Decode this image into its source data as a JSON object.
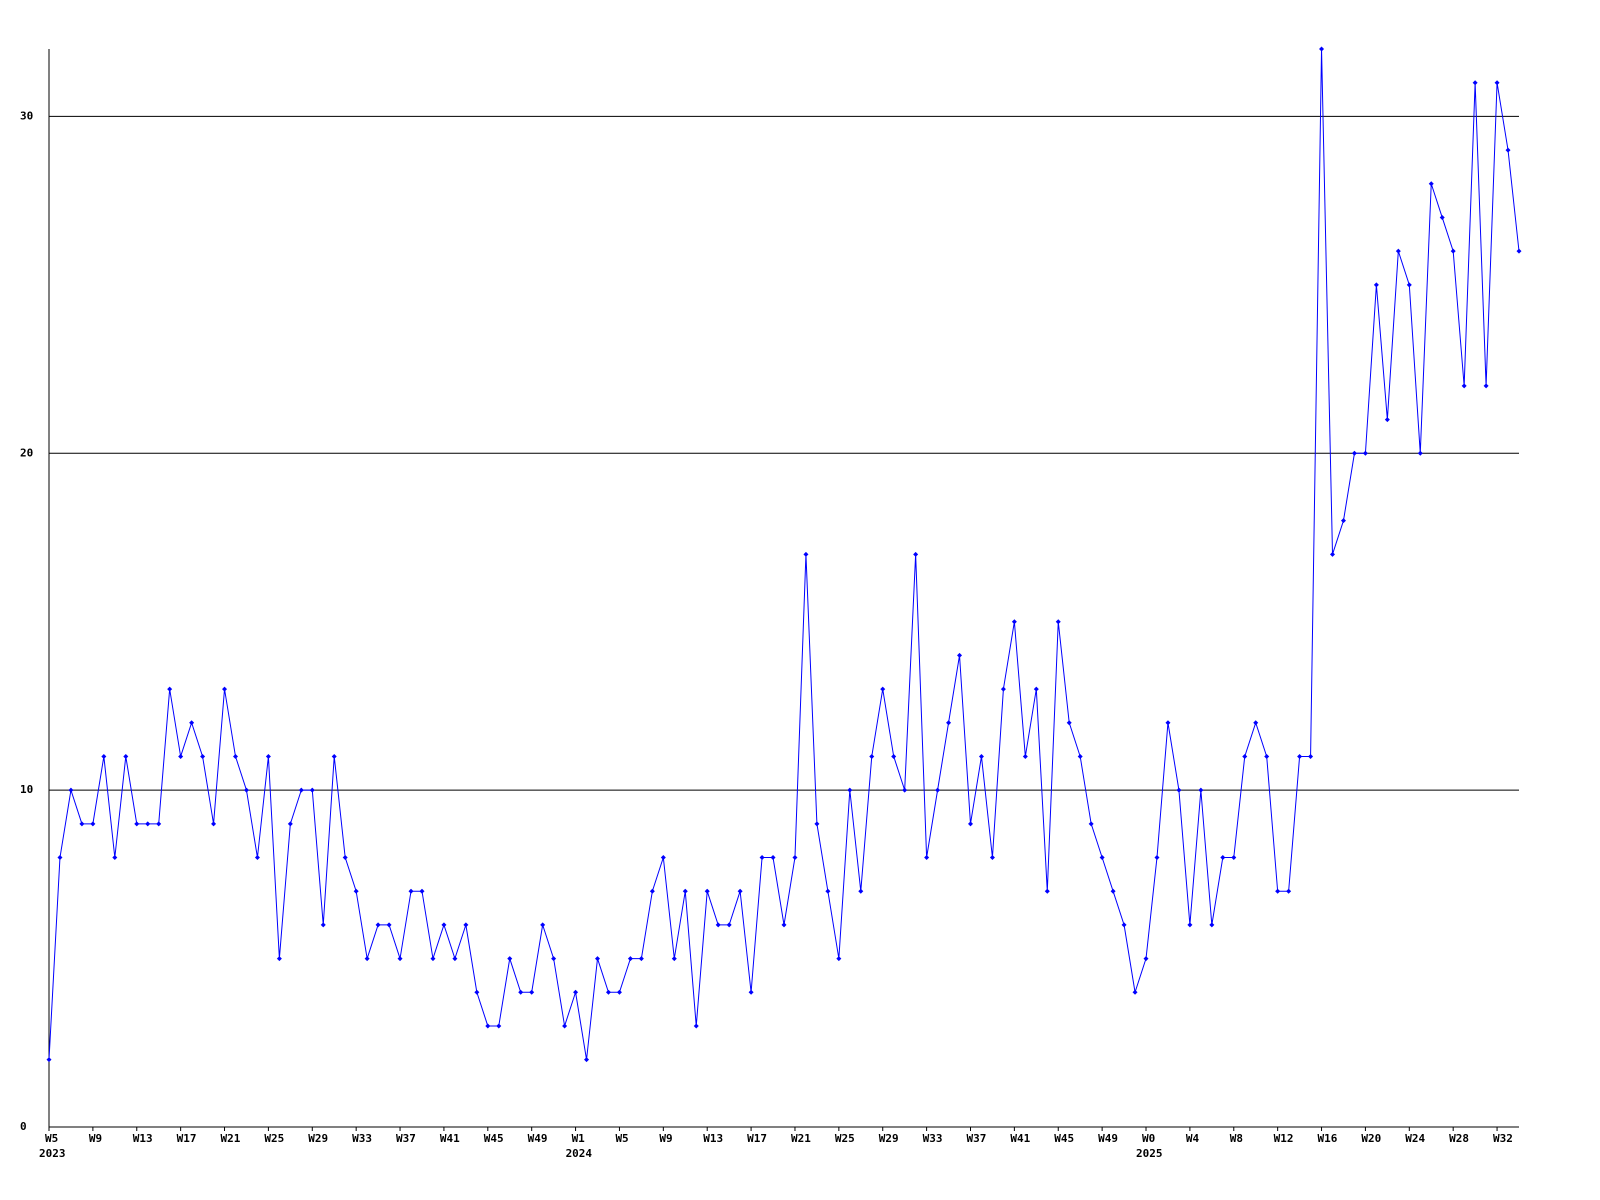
{
  "chart_data": {
    "type": "line",
    "categories": [
      "W5",
      null,
      null,
      null,
      "W9",
      null,
      null,
      null,
      "W13",
      null,
      null,
      null,
      "W17",
      null,
      null,
      null,
      "W21",
      null,
      null,
      null,
      "W25",
      null,
      null,
      null,
      "W29",
      null,
      null,
      null,
      "W33",
      null,
      null,
      null,
      "W37",
      null,
      null,
      null,
      "W41",
      null,
      null,
      null,
      "W45",
      null,
      null,
      null,
      "W49",
      null,
      null,
      null,
      "W1",
      null,
      null,
      null,
      "W5",
      null,
      null,
      null,
      "W9",
      null,
      null,
      null,
      "W13",
      null,
      null,
      null,
      "W17",
      null,
      null,
      null,
      "W21",
      null,
      null,
      null,
      "W25",
      null,
      null,
      null,
      "W29",
      null,
      null,
      null,
      "W33",
      null,
      null,
      null,
      "W37",
      null,
      null,
      null,
      "W41",
      null,
      null,
      null,
      "W45",
      null,
      null,
      null,
      "W49",
      null,
      null,
      null,
      "W0",
      null,
      null,
      null,
      "W4",
      null,
      null,
      null,
      "W8",
      null,
      null,
      null,
      "W12",
      null,
      null,
      null,
      "W16",
      null,
      null,
      null,
      "W20",
      null,
      null,
      null,
      "W24",
      null,
      null,
      null,
      "W28",
      null,
      null,
      null,
      "W32",
      null,
      null
    ],
    "category_years": [
      "2023",
      null,
      null,
      null,
      null,
      null,
      null,
      null,
      null,
      null,
      null,
      null,
      null,
      null,
      null,
      null,
      null,
      null,
      null,
      null,
      null,
      null,
      null,
      null,
      null,
      null,
      null,
      null,
      null,
      null,
      null,
      null,
      null,
      null,
      null,
      null,
      null,
      null,
      null,
      null,
      null,
      null,
      null,
      null,
      null,
      null,
      null,
      null,
      "2024",
      null,
      null,
      null,
      null,
      null,
      null,
      null,
      null,
      null,
      null,
      null,
      null,
      null,
      null,
      null,
      null,
      null,
      null,
      null,
      null,
      null,
      null,
      null,
      null,
      null,
      null,
      null,
      null,
      null,
      null,
      null,
      null,
      null,
      null,
      null,
      null,
      null,
      null,
      null,
      null,
      null,
      null,
      null,
      null,
      null,
      null,
      null,
      null,
      null,
      null,
      null,
      "2025",
      null,
      null,
      null,
      null,
      null,
      null,
      null,
      null,
      null,
      null,
      null,
      null,
      null,
      null,
      null,
      null,
      null,
      null,
      null,
      null,
      null,
      null,
      null,
      null,
      null,
      null,
      null,
      null,
      null,
      null,
      null,
      null,
      null,
      null
    ],
    "values": [
      2,
      8,
      10,
      9,
      9,
      11,
      8,
      11,
      9,
      9,
      9,
      13,
      11,
      12,
      11,
      9,
      13,
      11,
      10,
      8,
      11,
      5,
      9,
      10,
      10,
      6,
      11,
      8,
      7,
      5,
      6,
      6,
      5,
      7,
      7,
      5,
      6,
      5,
      6,
      4,
      3,
      3,
      5,
      4,
      4,
      6,
      5,
      3,
      4,
      2,
      5,
      4,
      4,
      5,
      5,
      7,
      8,
      5,
      7,
      3,
      7,
      6,
      6,
      7,
      4,
      8,
      8,
      6,
      8,
      17,
      9,
      7,
      5,
      10,
      7,
      11,
      13,
      11,
      10,
      17,
      8,
      10,
      12,
      14,
      9,
      11,
      8,
      13,
      15,
      11,
      13,
      7,
      15,
      12,
      11,
      9,
      8,
      7,
      6,
      4,
      5,
      8,
      12,
      10,
      6,
      10,
      6,
      8,
      8,
      11,
      12,
      11,
      7,
      7,
      11,
      11,
      32,
      17,
      18,
      20,
      20,
      25,
      21,
      26,
      25,
      20,
      28,
      27,
      26,
      22,
      31,
      22,
      31,
      29,
      26
    ],
    "color": "#0000ff",
    "ylim": [
      0,
      32
    ],
    "yticks": [
      0,
      10,
      20,
      30
    ],
    "grid": true
  }
}
